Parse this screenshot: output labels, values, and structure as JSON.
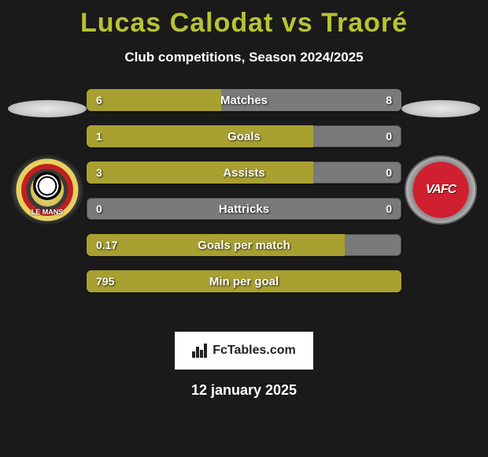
{
  "title_color": "#b8c332",
  "player1": "Lucas Calodat",
  "vs": "vs",
  "player2": "Traoré",
  "subtitle": "Club competitions, Season 2024/2025",
  "badge_left": {
    "name": "lemans",
    "label": "LE MANS"
  },
  "badge_right": {
    "name": "vafc",
    "label": "VAFC"
  },
  "bar_colors": {
    "left": "#a8a030",
    "right": "#7a7a7a",
    "track": "#7a7a7a"
  },
  "stats": [
    {
      "label": "Matches",
      "left_val": "6",
      "right_val": "8",
      "left_pct": 42.8,
      "right_pct": 57.2
    },
    {
      "label": "Goals",
      "left_val": "1",
      "right_val": "0",
      "left_pct": 72.0,
      "right_pct": 0
    },
    {
      "label": "Assists",
      "left_val": "3",
      "right_val": "0",
      "left_pct": 72.0,
      "right_pct": 0
    },
    {
      "label": "Hattricks",
      "left_val": "0",
      "right_val": "0",
      "left_pct": 0,
      "right_pct": 0
    },
    {
      "label": "Goals per match",
      "left_val": "0.17",
      "right_val": "",
      "left_pct": 82.0,
      "right_pct": 0
    },
    {
      "label": "Min per goal",
      "left_val": "795",
      "right_val": "",
      "left_pct": 100,
      "right_pct": 0
    }
  ],
  "brand": "FcTables.com",
  "date": "12 january 2025"
}
